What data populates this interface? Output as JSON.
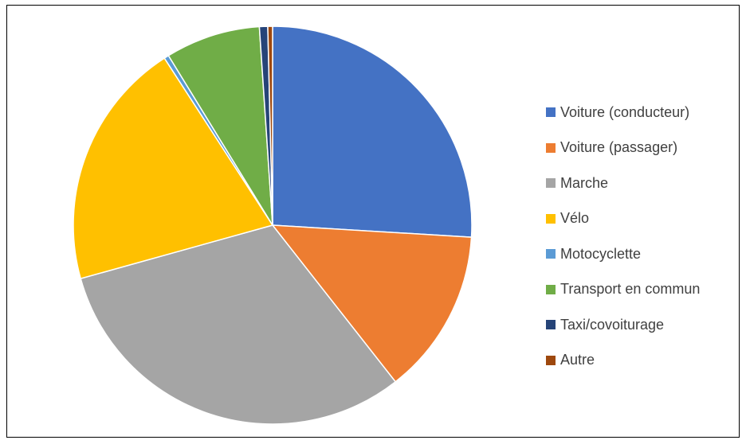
{
  "chart_data": {
    "type": "pie",
    "title": "",
    "legend_position": "right",
    "slices": [
      {
        "label": "Voiture (conducteur)",
        "value": 27.0,
        "color": "#4472C4"
      },
      {
        "label": "Voiture (passager)",
        "value": 14.0,
        "color": "#ED7D31"
      },
      {
        "label": "Marche",
        "value": 32.5,
        "color": "#A5A5A5"
      },
      {
        "label": "Vélo",
        "value": 21.0,
        "color": "#FFC000"
      },
      {
        "label": "Motocyclette",
        "value": 0.4,
        "color": "#5B9BD5"
      },
      {
        "label": "Transport en commun",
        "value": 8.0,
        "color": "#70AD47"
      },
      {
        "label": "Taxi/covoiturage",
        "value": 0.7,
        "color": "#264478"
      },
      {
        "label": "Autre",
        "value": 0.4,
        "color": "#9E480E"
      }
    ]
  }
}
